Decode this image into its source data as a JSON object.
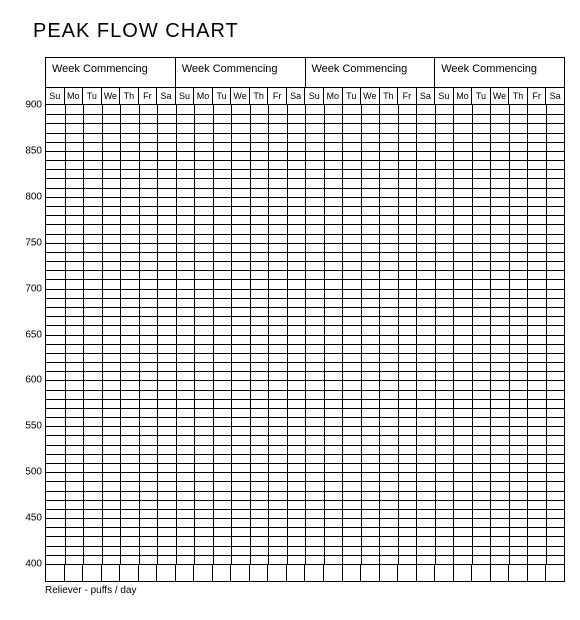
{
  "title": "PEAK FLOW CHART",
  "weeks": {
    "count": 4,
    "header_label": "Week Commencing",
    "days": [
      "Su",
      "Mo",
      "Tu",
      "We",
      "Th",
      "Fr",
      "Sa"
    ]
  },
  "y_axis": {
    "min": 400,
    "max": 900,
    "major_step": 50,
    "minor_per_major": 5,
    "labels": [
      900,
      850,
      800,
      750,
      700,
      650,
      600,
      550,
      500,
      450,
      400
    ]
  },
  "grid": {
    "minor_line_width": 0.5,
    "major_line_width": 1.5,
    "line_color": "#000000",
    "background": "#ffffff"
  },
  "footer_label": "Reliever - puffs / day",
  "fonts": {
    "title_size": 20,
    "header_size": 11,
    "day_size": 9,
    "ylabel_size": 10,
    "footer_size": 10
  }
}
